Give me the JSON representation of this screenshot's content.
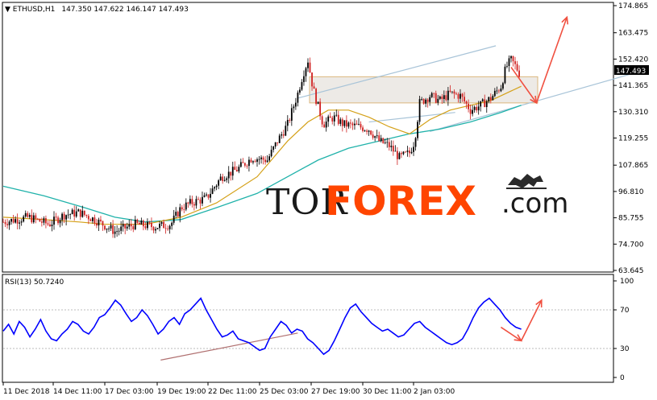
{
  "header": {
    "symbol": "ETHUSD,H1",
    "ohlc": "147.350 147.622 146.147 147.493",
    "rsi_label": "RSI(13) 50.7240"
  },
  "brand": {
    "part1": "TOR",
    "part2": "FOREX",
    "part3": ".com"
  },
  "colors": {
    "candle_up": "#000000",
    "candle_down": "#d02020",
    "ma_fast": "#d4a017",
    "ma_slow": "#20b2aa",
    "rsi_line": "#0000ff",
    "arrow": "#f05040",
    "channel": "#a8c4d8",
    "zone_fill": "#ece8e4",
    "rsi_trend": "#b07070",
    "brand_orange": "#ff4500"
  },
  "chart_data": [
    {
      "type": "candlestick",
      "title": "ETHUSD,H1",
      "ylim": [
        63.645,
        174.865
      ],
      "y_ticks": [
        "174.865",
        "163.475",
        "152.420",
        "141.365",
        "130.310",
        "119.255",
        "107.865",
        "96.810",
        "85.755",
        "74.700",
        "63.645"
      ],
      "last_price": "147.493",
      "x_ticks": [
        "11 Dec 2018",
        "14 Dec 11:00",
        "17 Dec 03:00",
        "19 Dec 19:00",
        "22 Dec 11:00",
        "25 Dec 03:00",
        "27 Dec 19:00",
        "30 Dec 11:00",
        "2 Jan 03:00"
      ],
      "close_path": [
        [
          0,
          84
        ],
        [
          5,
          86
        ],
        [
          9,
          83
        ],
        [
          12,
          87
        ],
        [
          15,
          88
        ],
        [
          18,
          85
        ],
        [
          22,
          80
        ],
        [
          26,
          83
        ],
        [
          30,
          82
        ],
        [
          33,
          83
        ],
        [
          35,
          90
        ],
        [
          37,
          92
        ],
        [
          40,
          94
        ],
        [
          43,
          103
        ],
        [
          46,
          106
        ],
        [
          49,
          111
        ],
        [
          52,
          110
        ],
        [
          54,
          118
        ],
        [
          56,
          125
        ],
        [
          58,
          138
        ],
        [
          59,
          146
        ],
        [
          60,
          152
        ],
        [
          61,
          140
        ],
        [
          63,
          125
        ],
        [
          65,
          128
        ],
        [
          67,
          125
        ],
        [
          70,
          124
        ],
        [
          72,
          123
        ],
        [
          74,
          118
        ],
        [
          76,
          116
        ],
        [
          78,
          111
        ],
        [
          80,
          113
        ],
        [
          81,
          118
        ],
        [
          82,
          134
        ],
        [
          84,
          137
        ],
        [
          86,
          135
        ],
        [
          88,
          138
        ],
        [
          90,
          137
        ],
        [
          92,
          131
        ],
        [
          94,
          133
        ],
        [
          96,
          136
        ],
        [
          98,
          141
        ],
        [
          99,
          149
        ],
        [
          100,
          152
        ],
        [
          101,
          149
        ],
        [
          102,
          145
        ]
      ],
      "ma_fast": [
        [
          0,
          86
        ],
        [
          8,
          85
        ],
        [
          15,
          84
        ],
        [
          20,
          83
        ],
        [
          28,
          83
        ],
        [
          35,
          86
        ],
        [
          42,
          92
        ],
        [
          50,
          103
        ],
        [
          56,
          118
        ],
        [
          60,
          126
        ],
        [
          64,
          131
        ],
        [
          68,
          131
        ],
        [
          72,
          128
        ],
        [
          76,
          124
        ],
        [
          80,
          121
        ],
        [
          84,
          127
        ],
        [
          88,
          131
        ],
        [
          92,
          133
        ],
        [
          96,
          135
        ],
        [
          100,
          139
        ],
        [
          102,
          141
        ]
      ],
      "ma_slow": [
        [
          0,
          99
        ],
        [
          8,
          95
        ],
        [
          16,
          90
        ],
        [
          22,
          86
        ],
        [
          28,
          84
        ],
        [
          35,
          85
        ],
        [
          42,
          90
        ],
        [
          50,
          96
        ],
        [
          56,
          103
        ],
        [
          62,
          110
        ],
        [
          68,
          115
        ],
        [
          74,
          118
        ],
        [
          80,
          121
        ],
        [
          86,
          123
        ],
        [
          92,
          126
        ],
        [
          98,
          130
        ],
        [
          102,
          133
        ]
      ],
      "range_zone": [
        134,
        145
      ],
      "channel_upper": [
        [
          58,
          136
        ],
        [
          97,
          158
        ]
      ],
      "channel_lower": [
        [
          84,
          122
        ],
        [
          125,
          147
        ]
      ],
      "arrows": [
        [
          [
            100,
            149
          ],
          [
            105,
            134
          ]
        ],
        [
          [
            105,
            134
          ],
          [
            111,
            170
          ]
        ]
      ]
    },
    {
      "type": "line",
      "title": "RSI(13) 50.7240",
      "ylim": [
        0,
        100
      ],
      "y_ticks": [
        "100",
        "70",
        "30",
        "0"
      ],
      "values": [
        48,
        55,
        45,
        58,
        52,
        42,
        50,
        60,
        48,
        40,
        38,
        45,
        50,
        58,
        55,
        48,
        45,
        52,
        62,
        65,
        72,
        80,
        75,
        66,
        58,
        62,
        70,
        64,
        55,
        45,
        50,
        58,
        62,
        55,
        66,
        70,
        76,
        82,
        70,
        60,
        50,
        42,
        44,
        48,
        40,
        38,
        36,
        32,
        28,
        30,
        42,
        50,
        58,
        54,
        46,
        50,
        48,
        40,
        36,
        30,
        24,
        28,
        38,
        50,
        62,
        72,
        76,
        68,
        62,
        56,
        52,
        48,
        50,
        46,
        42,
        44,
        50,
        56,
        58,
        52,
        48,
        44,
        40,
        36,
        34,
        36,
        40,
        50,
        62,
        72,
        78,
        82,
        76,
        70,
        62,
        56,
        52,
        50
      ],
      "trendline": [
        [
          31,
          18
        ],
        [
          58,
          46
        ]
      ],
      "arrows": [
        [
          [
            98,
            52
          ],
          [
            102,
            38
          ]
        ],
        [
          [
            102,
            38
          ],
          [
            106,
            80
          ]
        ]
      ]
    }
  ]
}
